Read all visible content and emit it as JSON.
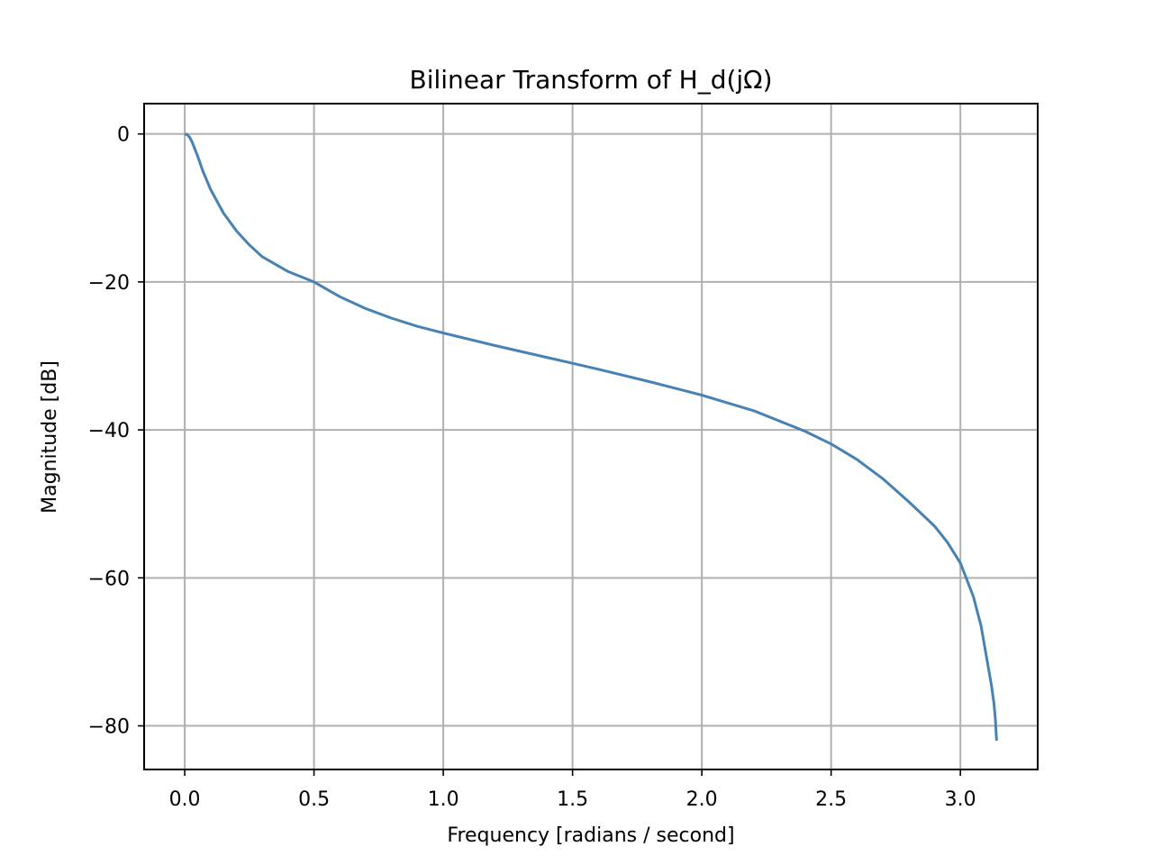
{
  "chart_data": {
    "type": "line",
    "title": "Bilinear Transform of H_d(jΩ)",
    "xlabel": "Frequency [radians / second]",
    "ylabel": "Magnitude [dB]",
    "xlim": [
      -0.157,
      3.299
    ],
    "ylim": [
      -85.9,
      4.1
    ],
    "xticks": [
      0.0,
      0.5,
      1.0,
      1.5,
      2.0,
      2.5,
      3.0
    ],
    "xtick_labels": [
      "0.0",
      "0.5",
      "1.0",
      "1.5",
      "2.0",
      "2.5",
      "3.0"
    ],
    "yticks": [
      0,
      -20,
      -40,
      -60,
      -80
    ],
    "ytick_labels": [
      "0",
      "−20",
      "−40",
      "−60",
      "−80"
    ],
    "grid": true,
    "series": [
      {
        "color": "#4682b4",
        "x": [
          0.0,
          0.01,
          0.02,
          0.03,
          0.05,
          0.07,
          0.1,
          0.15,
          0.2,
          0.25,
          0.3,
          0.4,
          0.5,
          0.6,
          0.7,
          0.8,
          0.9,
          1.0,
          1.2,
          1.4,
          1.5,
          1.6,
          1.8,
          2.0,
          2.2,
          2.4,
          2.5,
          2.6,
          2.7,
          2.8,
          2.9,
          2.95,
          3.0,
          3.05,
          3.08,
          3.1,
          3.12,
          3.13,
          3.135,
          3.14
        ],
        "y": [
          0.0,
          -0.1,
          -0.5,
          -1.2,
          -3.0,
          -5.0,
          -7.5,
          -10.7,
          -13.1,
          -15.0,
          -16.6,
          -18.6,
          -20.0,
          -22.0,
          -23.6,
          -24.9,
          -26.0,
          -26.9,
          -28.6,
          -30.2,
          -31.0,
          -31.8,
          -33.5,
          -35.3,
          -37.4,
          -40.2,
          -41.9,
          -44.0,
          -46.6,
          -49.7,
          -53.0,
          -55.2,
          -58.0,
          -62.5,
          -66.5,
          -70.5,
          -74.5,
          -77.0,
          -79.0,
          -82.0
        ]
      }
    ]
  }
}
